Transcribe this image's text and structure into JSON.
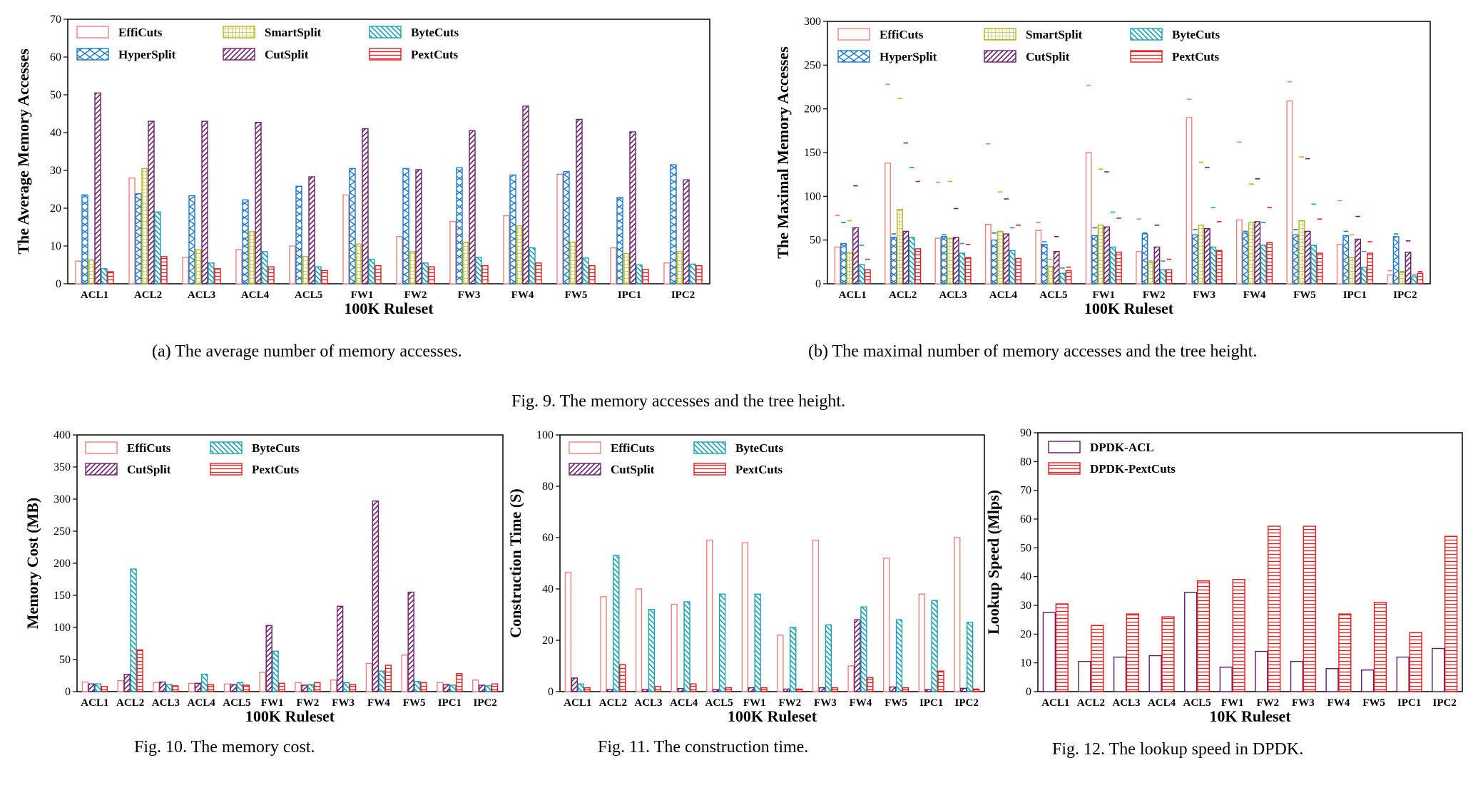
{
  "captions": {
    "fig9a": "(a) The average number of memory accesses.",
    "fig9b": "(b) The maximal number of memory accesses and the tree height.",
    "fig9": "Fig. 9.  The memory accesses and the tree height.",
    "fig10": "Fig. 10.  The memory cost.",
    "fig11": "Fig. 11.  The construction time.",
    "fig12": "Fig. 12.  The lookup speed in DPDK."
  },
  "series_styles": {
    "EffiCuts": {
      "color": "#f08080",
      "pattern": "none"
    },
    "HyperSplit": {
      "color": "#1f78c8",
      "pattern": "hyper"
    },
    "SmartSplit": {
      "color": "#b5b520",
      "pattern": "grid"
    },
    "CutSplit": {
      "color": "#6b1f6b",
      "pattern": "diag"
    },
    "ByteCuts": {
      "color": "#1aa0b0",
      "pattern": "backdiag"
    },
    "PextCuts": {
      "color": "#e8191c",
      "pattern": "hlines"
    },
    "DPDK-ACL": {
      "color": "#5b1a6b",
      "pattern": "none"
    },
    "DPDK-PextCuts": {
      "color": "#e8191c",
      "pattern": "hlines"
    }
  },
  "chart_data": [
    {
      "id": "fig9a",
      "type": "bar",
      "title": "",
      "xlabel": "100K Ruleset",
      "ylabel": "The Average Memory Accesses",
      "ylim": [
        0,
        70
      ],
      "yticks": [
        0,
        10,
        20,
        30,
        40,
        50,
        60,
        70
      ],
      "legend_position": "top-left",
      "categories": [
        "ACL1",
        "ACL2",
        "ACL3",
        "ACL4",
        "ACL5",
        "FW1",
        "FW2",
        "FW3",
        "FW4",
        "FW5",
        "IPC1",
        "IPC2"
      ],
      "series": [
        {
          "name": "EffiCuts",
          "values": [
            6,
            28,
            7,
            9,
            10,
            23.5,
            12.5,
            16.5,
            18,
            29,
            9.5,
            5.5
          ]
        },
        {
          "name": "HyperSplit",
          "values": [
            23.5,
            23.8,
            23.3,
            22.2,
            25.8,
            30.5,
            30.5,
            30.7,
            28.8,
            29.7,
            22.8,
            31.5
          ]
        },
        {
          "name": "SmartSplit",
          "values": [
            6.3,
            30.5,
            9,
            13.8,
            7.2,
            10.5,
            8.5,
            11,
            15.3,
            11,
            8,
            8.5
          ]
        },
        {
          "name": "CutSplit",
          "values": [
            50.5,
            43,
            43,
            42.7,
            28.3,
            41,
            30.2,
            40.5,
            47,
            43.5,
            40.2,
            27.5
          ]
        },
        {
          "name": "ByteCuts",
          "values": [
            4,
            19,
            5.5,
            8.5,
            4.5,
            6.5,
            5.5,
            7,
            9.5,
            6.8,
            5,
            5.2
          ]
        },
        {
          "name": "PextCuts",
          "values": [
            3.2,
            7.2,
            4,
            4.5,
            3.5,
            4.8,
            4.5,
            4.8,
            5.5,
            4.8,
            3.8,
            4.8
          ]
        }
      ]
    },
    {
      "id": "fig9b",
      "type": "bar",
      "title": "",
      "xlabel": "100K Ruleset",
      "ylabel": "The Maximal Memory Accesses",
      "ylim": [
        0,
        300
      ],
      "yticks": [
        0,
        50,
        100,
        150,
        200,
        250,
        300
      ],
      "legend_position": "top-left",
      "categories": [
        "ACL1",
        "ACL2",
        "ACL3",
        "ACL4",
        "ACL5",
        "FW1",
        "FW2",
        "FW3",
        "FW4",
        "FW5",
        "IPC1",
        "IPC2"
      ],
      "series": [
        {
          "name": "EffiCuts",
          "values": [
            42,
            138,
            52,
            68,
            61,
            150,
            37,
            190,
            73,
            209,
            45,
            10
          ],
          "tree_height": [
            78,
            228,
            116,
            160,
            70,
            227,
            74,
            211,
            162,
            231,
            95,
            15
          ]
        },
        {
          "name": "HyperSplit",
          "values": [
            46,
            53,
            54,
            50,
            45,
            55,
            57,
            56,
            58,
            56,
            55,
            54
          ],
          "tree_height": [
            70,
            57,
            56,
            58,
            48,
            64,
            58,
            62,
            60,
            62,
            60,
            57
          ]
        },
        {
          "name": "SmartSplit",
          "values": [
            36,
            85,
            52,
            60,
            20,
            67,
            24,
            67,
            70,
            72,
            30,
            13
          ],
          "tree_height": [
            72,
            212,
            117,
            105,
            28,
            131,
            26,
            139,
            114,
            145,
            56,
            14
          ]
        },
        {
          "name": "CutSplit",
          "values": [
            64,
            60,
            53,
            57,
            37,
            65,
            42,
            63,
            71,
            60,
            51,
            36
          ],
          "tree_height": [
            112,
            161,
            86,
            97,
            54,
            128,
            67,
            133,
            120,
            143,
            77,
            49
          ]
        },
        {
          "name": "ByteCuts",
          "values": [
            22,
            53,
            35,
            38,
            12,
            42,
            16,
            42,
            44,
            44,
            19,
            8
          ],
          "tree_height": [
            44,
            133,
            46,
            64,
            18,
            82,
            26,
            87,
            70,
            91,
            37,
            10
          ]
        },
        {
          "name": "PextCuts",
          "values": [
            16,
            40,
            30,
            29,
            15,
            36,
            16,
            38,
            47,
            35,
            35,
            12
          ],
          "tree_height": [
            28,
            117,
            45,
            67,
            19,
            75,
            28,
            71,
            87,
            74,
            48,
            14
          ]
        }
      ]
    },
    {
      "id": "fig10",
      "type": "bar",
      "title": "",
      "xlabel": "100K Ruleset",
      "ylabel": "Memory Cost (MB)",
      "ylim": [
        0,
        400
      ],
      "yticks": [
        0,
        50,
        100,
        150,
        200,
        250,
        300,
        350,
        400
      ],
      "legend_position": "top-left",
      "categories": [
        "ACL1",
        "ACL2",
        "ACL3",
        "ACL4",
        "ACL5",
        "FW1",
        "FW2",
        "FW3",
        "FW4",
        "FW5",
        "IPC1",
        "IPC2"
      ],
      "series": [
        {
          "name": "EffiCuts",
          "values": [
            15,
            17,
            14,
            13,
            12,
            30,
            14,
            18,
            44,
            57,
            14,
            18
          ]
        },
        {
          "name": "CutSplit",
          "values": [
            12,
            27,
            15,
            13,
            11,
            103,
            10,
            133,
            297,
            155,
            11,
            10
          ]
        },
        {
          "name": "ByteCuts",
          "values": [
            12,
            191,
            11,
            27,
            14,
            63,
            11,
            14,
            32,
            16,
            10,
            9
          ]
        },
        {
          "name": "PextCuts",
          "values": [
            8,
            65,
            9,
            11,
            10,
            13,
            14,
            11,
            41,
            14,
            28,
            12
          ]
        }
      ]
    },
    {
      "id": "fig11",
      "type": "bar",
      "title": "",
      "xlabel": "100K Ruleset",
      "ylabel": "Construction Time (S)",
      "ylim": [
        0,
        100
      ],
      "yticks": [
        0,
        20,
        40,
        60,
        80,
        100
      ],
      "legend_position": "top-left",
      "categories": [
        "ACL1",
        "ACL2",
        "ACL3",
        "ACL4",
        "ACL5",
        "FW1",
        "FW2",
        "FW3",
        "FW4",
        "FW5",
        "IPC1",
        "IPC2"
      ],
      "series": [
        {
          "name": "EffiCuts",
          "values": [
            46.5,
            37,
            40,
            34,
            59,
            58,
            22,
            59,
            10,
            52,
            38,
            60
          ]
        },
        {
          "name": "CutSplit",
          "values": [
            5.3,
            0.8,
            0.8,
            1.2,
            0.8,
            1.5,
            1.0,
            1.5,
            28,
            1.8,
            0.8,
            1.3
          ]
        },
        {
          "name": "ByteCuts",
          "values": [
            3,
            53,
            32,
            35,
            38,
            38,
            25,
            26,
            33,
            28,
            35.5,
            27
          ]
        },
        {
          "name": "PextCuts",
          "values": [
            1.5,
            10.5,
            2,
            3,
            1.5,
            1.5,
            1,
            1.5,
            5.5,
            1.5,
            8,
            1
          ]
        }
      ]
    },
    {
      "id": "fig12",
      "type": "bar",
      "title": "",
      "xlabel": "10K Ruleset",
      "ylabel": "Lookup Speed (Mlps)",
      "ylim": [
        0,
        90
      ],
      "yticks": [
        0,
        10,
        20,
        30,
        40,
        50,
        60,
        70,
        80,
        90
      ],
      "legend_position": "top-left",
      "categories": [
        "ACL1",
        "ACL2",
        "ACL3",
        "ACL4",
        "ACL5",
        "FW1",
        "FW2",
        "FW3",
        "FW4",
        "FW5",
        "IPC1",
        "IPC2"
      ],
      "series": [
        {
          "name": "DPDK-ACL",
          "values": [
            27.5,
            10.5,
            12,
            12.5,
            34.5,
            8.5,
            14,
            10.5,
            8,
            7.5,
            12,
            15
          ]
        },
        {
          "name": "DPDK-PextCuts",
          "values": [
            30.5,
            23,
            27,
            26,
            38.5,
            39,
            57.5,
            57.5,
            27,
            31,
            20.5,
            54
          ]
        }
      ]
    }
  ]
}
